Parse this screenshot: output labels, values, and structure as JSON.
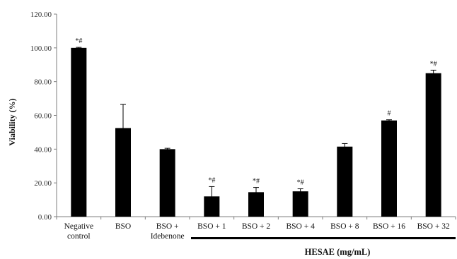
{
  "chart_data": {
    "type": "bar",
    "title": "",
    "ylabel": "Viability  (%)",
    "xlabel": "",
    "ylim": [
      0,
      120
    ],
    "yticks": [
      0,
      20,
      40,
      60,
      80,
      100,
      120
    ],
    "ytick_labels": [
      "0.00",
      "20.00",
      "40.00",
      "60.00",
      "80.00",
      "100.00",
      "120.00"
    ],
    "grid": false,
    "bar_color": "#000000",
    "categories": [
      [
        "Negative",
        "control"
      ],
      [
        "BSO"
      ],
      [
        "BSO +",
        "Idebenone"
      ],
      [
        "BSO + 1"
      ],
      [
        "BSO + 2"
      ],
      [
        "BSO + 4"
      ],
      [
        "BSO + 8"
      ],
      [
        "BSO + 16"
      ],
      [
        "BSO + 32"
      ]
    ],
    "values": [
      100.0,
      52.5,
      40.0,
      12.0,
      14.5,
      15.0,
      41.5,
      57.0,
      85.0
    ],
    "errors": [
      0.3,
      14.0,
      0.5,
      5.8,
      2.8,
      1.5,
      1.8,
      0.4,
      1.8
    ],
    "annotations": [
      "*#",
      "",
      "",
      "*#",
      "*#",
      "*#",
      "",
      "#",
      "*#"
    ],
    "group": {
      "label": "HESAE (mg/mL)",
      "from_index": 3,
      "to_index": 8
    }
  }
}
